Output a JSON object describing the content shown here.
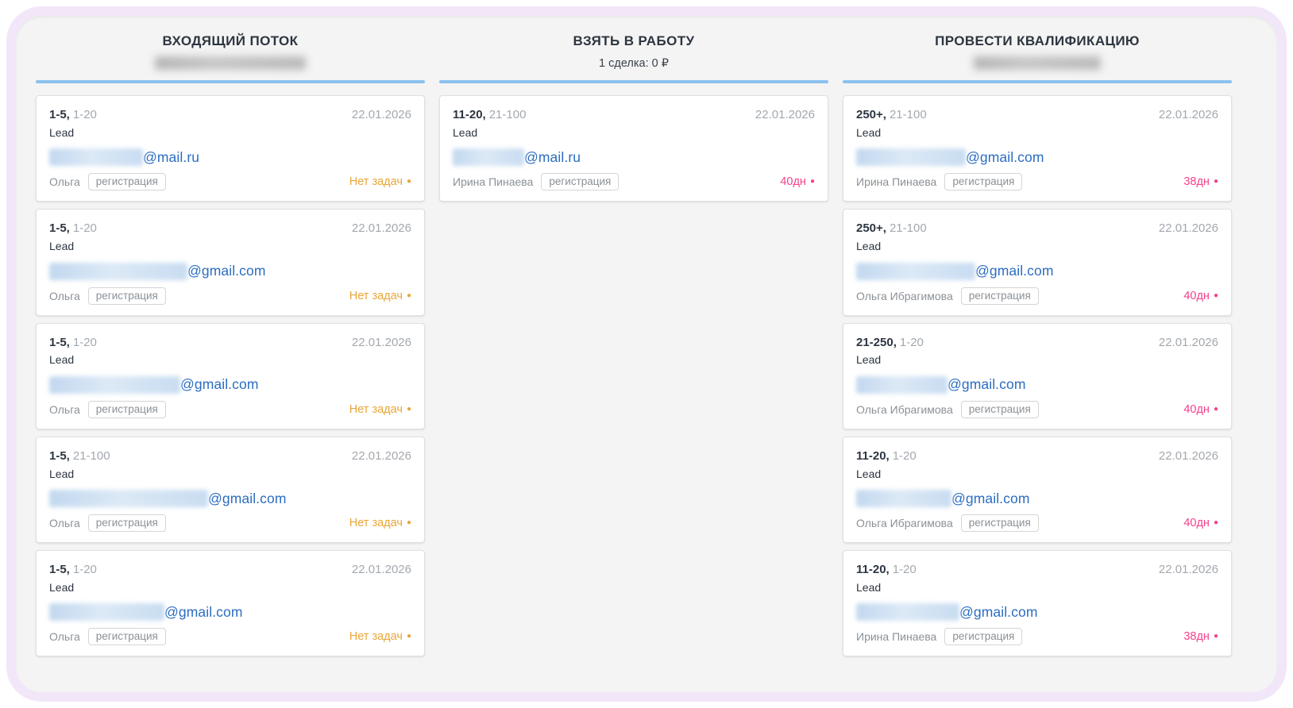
{
  "colors": {
    "frame_border": "#f2e7f9",
    "panel_background": "#f4f4f4",
    "column_accent_line": "#8cc1ee",
    "email_link": "#2b6dc1",
    "status_warning": "#e8a63a",
    "status_danger": "#f5408c"
  },
  "board": {
    "columns": [
      {
        "title": "ВХОДЯЩИЙ ПОТОК",
        "subtitle": "",
        "subtitle_blurred": true,
        "subtitle_blur_width": 190,
        "cards": [
          {
            "size": "1-5",
            "range": "1-20",
            "date": "22.01.2026",
            "entity": "Lead",
            "email_domain": "@mail.ru",
            "email_blur_width": 118,
            "owner": "Ольга",
            "tag": "регистрация",
            "status": {
              "text": "Нет задач",
              "dot": "●",
              "type": "warning"
            }
          },
          {
            "size": "1-5",
            "range": "1-20",
            "date": "22.01.2026",
            "entity": "Lead",
            "email_domain": "@gmail.com",
            "email_blur_width": 174,
            "owner": "Ольга",
            "tag": "регистрация",
            "status": {
              "text": "Нет задач",
              "dot": "●",
              "type": "warning"
            }
          },
          {
            "size": "1-5",
            "range": "1-20",
            "date": "22.01.2026",
            "entity": "Lead",
            "email_domain": "@gmail.com",
            "email_blur_width": 165,
            "owner": "Ольга",
            "tag": "регистрация",
            "status": {
              "text": "Нет задач",
              "dot": "●",
              "type": "warning"
            }
          },
          {
            "size": "1-5",
            "range": "21-100",
            "date": "22.01.2026",
            "entity": "Lead",
            "email_domain": "@gmail.com",
            "email_blur_width": 200,
            "owner": "Ольга",
            "tag": "регистрация",
            "status": {
              "text": "Нет задач",
              "dot": "●",
              "type": "warning"
            }
          },
          {
            "size": "1-5",
            "range": "1-20",
            "date": "22.01.2026",
            "entity": "Lead",
            "email_domain": "@gmail.com",
            "email_blur_width": 145,
            "owner": "Ольга",
            "tag": "регистрация",
            "status": {
              "text": "Нет задач",
              "dot": "●",
              "type": "warning"
            }
          }
        ]
      },
      {
        "title": "ВЗЯТЬ В РАБОТУ",
        "subtitle": "1 сделка: 0 ₽",
        "subtitle_blurred": false,
        "subtitle_blur_width": 0,
        "cards": [
          {
            "size": "11-20",
            "range": "21-100",
            "date": "22.01.2026",
            "entity": "Lead",
            "email_domain": "@mail.ru",
            "email_blur_width": 90,
            "owner": "Ирина Пинаева",
            "tag": "регистрация",
            "status": {
              "text": "40дн",
              "dot": "●",
              "type": "danger"
            }
          }
        ]
      },
      {
        "title": "ПРОВЕСТИ КВАЛИФИКАЦИЮ",
        "subtitle": "",
        "subtitle_blurred": true,
        "subtitle_blur_width": 160,
        "cards": [
          {
            "size": "250+",
            "range": "21-100",
            "date": "22.01.2026",
            "entity": "Lead",
            "email_domain": "@gmail.com",
            "email_blur_width": 138,
            "owner": "Ирина Пинаева",
            "tag": "регистрация",
            "status": {
              "text": "38дн",
              "dot": "●",
              "type": "danger"
            }
          },
          {
            "size": "250+",
            "range": "21-100",
            "date": "22.01.2026",
            "entity": "Lead",
            "email_domain": "@gmail.com",
            "email_blur_width": 150,
            "owner": "Ольга Ибрагимова",
            "tag": "регистрация",
            "status": {
              "text": "40дн",
              "dot": "●",
              "type": "danger"
            }
          },
          {
            "size": "21-250",
            "range": "1-20",
            "date": "22.01.2026",
            "entity": "Lead",
            "email_domain": "@gmail.com",
            "email_blur_width": 115,
            "owner": "Ольга Ибрагимова",
            "tag": "регистрация",
            "status": {
              "text": "40дн",
              "dot": "●",
              "type": "danger"
            }
          },
          {
            "size": "11-20",
            "range": "1-20",
            "date": "22.01.2026",
            "entity": "Lead",
            "email_domain": "@gmail.com",
            "email_blur_width": 120,
            "owner": "Ольга Ибрагимова",
            "tag": "регистрация",
            "status": {
              "text": "40дн",
              "dot": "●",
              "type": "danger"
            }
          },
          {
            "size": "11-20",
            "range": "1-20",
            "date": "22.01.2026",
            "entity": "Lead",
            "email_domain": "@gmail.com",
            "email_blur_width": 130,
            "owner": "Ирина Пинаева",
            "tag": "регистрация",
            "status": {
              "text": "38дн",
              "dot": "●",
              "type": "danger"
            }
          }
        ]
      }
    ]
  }
}
